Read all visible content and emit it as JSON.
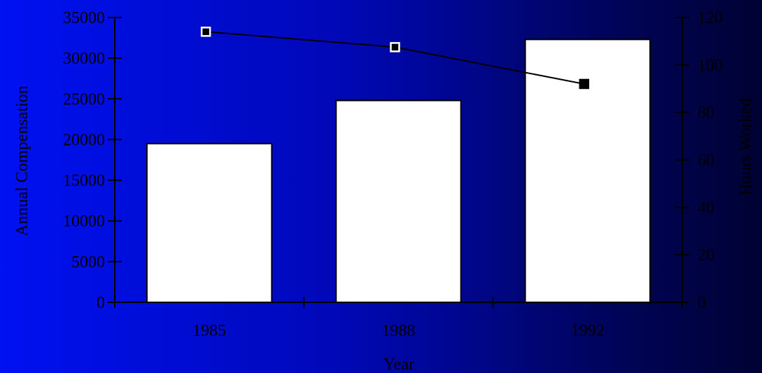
{
  "chart_data": {
    "type": "bar",
    "categories": [
      "1985",
      "1988",
      "1992"
    ],
    "xlabel": "Year",
    "ylabel": "Annual Compensation",
    "y2label": "Hours Worked",
    "ylim": [
      0,
      35000
    ],
    "y2lim": [
      0,
      120
    ],
    "yticks": [
      0,
      5000,
      10000,
      15000,
      20000,
      25000,
      30000,
      35000
    ],
    "y2ticks": [
      0,
      20,
      40,
      60,
      80,
      100,
      120
    ],
    "series": [
      {
        "type": "bar",
        "axis": "left",
        "values": [
          19500,
          24800,
          32300
        ],
        "color": "#ffffff"
      },
      {
        "type": "line",
        "axis": "right",
        "values": [
          114,
          107.5,
          92
        ],
        "color": "#000000",
        "marker_fills": [
          "#000000",
          "#000000",
          "#000000"
        ],
        "marker_borders": [
          "#ffffff",
          "#ffffff",
          "#000000"
        ]
      }
    ],
    "grid": false,
    "legend": "none"
  }
}
